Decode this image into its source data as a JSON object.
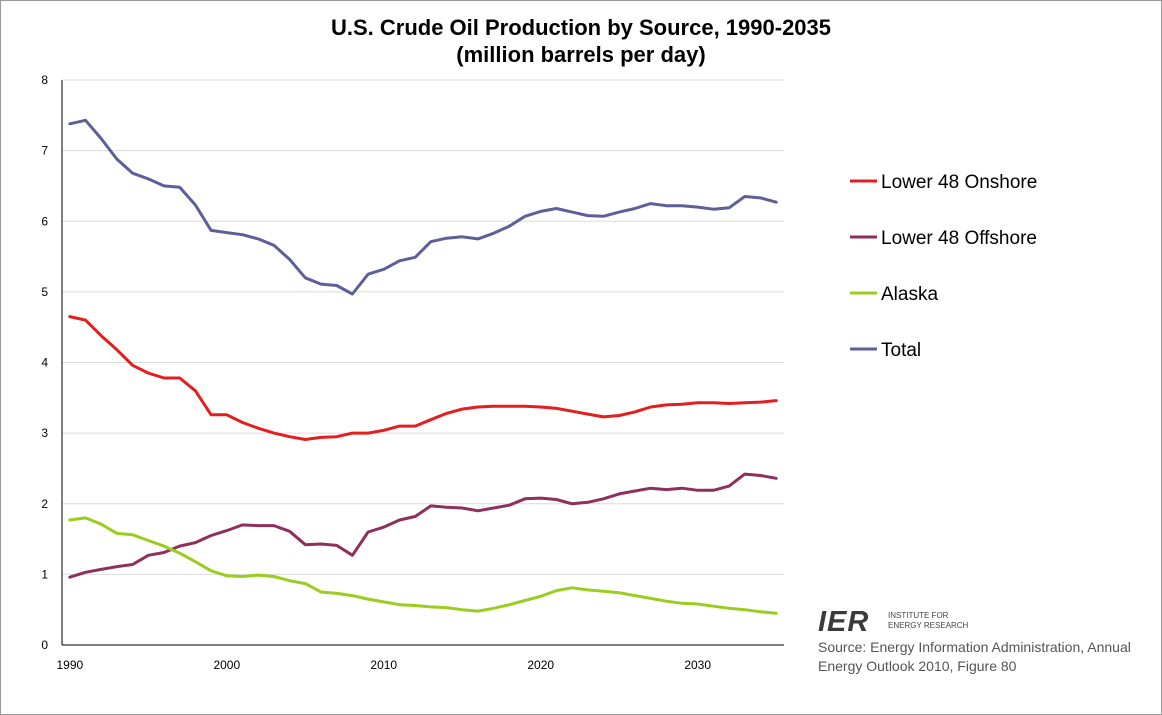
{
  "chart_data": {
    "type": "line",
    "title": "U.S. Crude Oil Production by Source, 1990-2035",
    "subtitle": "(million barrels per day)",
    "xlabel": "",
    "ylabel": "",
    "xlim": [
      1990,
      2035
    ],
    "ylim": [
      0,
      8
    ],
    "x_ticks": [
      1990,
      2000,
      2010,
      2020,
      2030
    ],
    "y_ticks": [
      0,
      1,
      2,
      3,
      4,
      5,
      6,
      7,
      8
    ],
    "grid": "horizontal",
    "legend_position": "right",
    "x": [
      1990,
      1991,
      1992,
      1993,
      1994,
      1995,
      1996,
      1997,
      1998,
      1999,
      2000,
      2001,
      2002,
      2003,
      2004,
      2005,
      2006,
      2007,
      2008,
      2009,
      2010,
      2011,
      2012,
      2013,
      2014,
      2015,
      2016,
      2017,
      2018,
      2019,
      2020,
      2021,
      2022,
      2023,
      2024,
      2025,
      2026,
      2027,
      2028,
      2029,
      2030,
      2031,
      2032,
      2033,
      2034,
      2035
    ],
    "series": [
      {
        "name": "Lower 48 Onshore",
        "color": "#e41e1e",
        "values": [
          4.65,
          4.6,
          4.38,
          4.18,
          3.96,
          3.85,
          3.78,
          3.78,
          3.6,
          3.26,
          3.26,
          3.15,
          3.07,
          3.0,
          2.95,
          2.91,
          2.94,
          2.95,
          3.0,
          3.0,
          3.04,
          3.1,
          3.1,
          3.19,
          3.28,
          3.34,
          3.37,
          3.38,
          3.38,
          3.38,
          3.37,
          3.35,
          3.31,
          3.27,
          3.23,
          3.25,
          3.3,
          3.37,
          3.4,
          3.41,
          3.43,
          3.43,
          3.42,
          3.43,
          3.44,
          3.46
        ]
      },
      {
        "name": "Lower 48 Offshore",
        "color": "#8e2f5c",
        "values": [
          0.96,
          1.03,
          1.07,
          1.11,
          1.14,
          1.27,
          1.31,
          1.4,
          1.45,
          1.55,
          1.62,
          1.7,
          1.69,
          1.69,
          1.61,
          1.42,
          1.43,
          1.41,
          1.27,
          1.6,
          1.67,
          1.77,
          1.82,
          1.97,
          1.95,
          1.94,
          1.9,
          1.94,
          1.98,
          2.07,
          2.08,
          2.06,
          2.0,
          2.02,
          2.07,
          2.14,
          2.18,
          2.22,
          2.2,
          2.22,
          2.19,
          2.19,
          2.25,
          2.42,
          2.4,
          2.36
        ]
      },
      {
        "name": "Alaska",
        "color": "#9acd1e",
        "values": [
          1.77,
          1.8,
          1.71,
          1.58,
          1.56,
          1.48,
          1.4,
          1.3,
          1.18,
          1.05,
          0.98,
          0.97,
          0.99,
          0.97,
          0.91,
          0.87,
          0.75,
          0.73,
          0.7,
          0.65,
          0.61,
          0.57,
          0.56,
          0.54,
          0.53,
          0.5,
          0.48,
          0.52,
          0.57,
          0.63,
          0.69,
          0.77,
          0.81,
          0.78,
          0.76,
          0.74,
          0.7,
          0.66,
          0.62,
          0.59,
          0.58,
          0.55,
          0.52,
          0.5,
          0.47,
          0.45
        ]
      },
      {
        "name": "Total",
        "color": "#5e5f98",
        "values": [
          7.38,
          7.43,
          7.17,
          6.88,
          6.68,
          6.6,
          6.5,
          6.48,
          6.23,
          5.87,
          5.84,
          5.81,
          5.75,
          5.66,
          5.46,
          5.2,
          5.11,
          5.09,
          4.97,
          5.25,
          5.32,
          5.44,
          5.49,
          5.71,
          5.76,
          5.78,
          5.75,
          5.83,
          5.93,
          6.07,
          6.14,
          6.18,
          6.13,
          6.08,
          6.07,
          6.13,
          6.18,
          6.25,
          6.22,
          6.22,
          6.2,
          6.17,
          6.19,
          6.35,
          6.33,
          6.27
        ]
      }
    ],
    "source_lines": [
      "Source: Energy Information Administration, Annual",
      "Energy Outlook 2010, Figure 80"
    ]
  },
  "logo": {
    "mark": "IER",
    "line1": "INSTITUTE FOR",
    "line2": "ENERGY RESEARCH"
  }
}
